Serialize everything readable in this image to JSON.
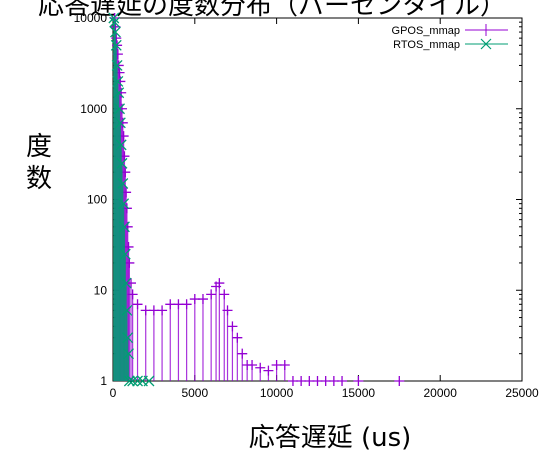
{
  "chart_data": {
    "type": "scatter",
    "title": "応答遅延の度数分布（パーセンタイル）",
    "xlabel": "応答遅延 (us)",
    "ylabel": "度数",
    "x_ticks": [
      "0",
      "5000",
      "10000",
      "15000",
      "20000",
      "25000"
    ],
    "y_ticks": [
      "1",
      "10",
      "100",
      "1000",
      "10000"
    ],
    "xlim": [
      0,
      25000
    ],
    "ylim": [
      1,
      10000
    ],
    "y_scale": "log",
    "legend_position": "top-right",
    "series": [
      {
        "name": "GPOS_mmap",
        "color": "#9400d3",
        "marker": "plus",
        "points": [
          [
            100,
            10000
          ],
          [
            150,
            8000
          ],
          [
            200,
            6000
          ],
          [
            250,
            5000
          ],
          [
            300,
            4000
          ],
          [
            350,
            3000
          ],
          [
            400,
            2500
          ],
          [
            450,
            2000
          ],
          [
            500,
            1500
          ],
          [
            550,
            1000
          ],
          [
            600,
            700
          ],
          [
            650,
            500
          ],
          [
            700,
            300
          ],
          [
            750,
            200
          ],
          [
            800,
            120
          ],
          [
            850,
            80
          ],
          [
            900,
            50
          ],
          [
            950,
            30
          ],
          [
            1000,
            20
          ],
          [
            1100,
            12
          ],
          [
            1200,
            9
          ],
          [
            1500,
            7
          ],
          [
            2000,
            6
          ],
          [
            2500,
            6
          ],
          [
            3000,
            6
          ],
          [
            3500,
            7
          ],
          [
            4000,
            7
          ],
          [
            4500,
            7
          ],
          [
            5000,
            8
          ],
          [
            5500,
            8
          ],
          [
            6000,
            9
          ],
          [
            6300,
            11
          ],
          [
            6500,
            12
          ],
          [
            6800,
            9
          ],
          [
            7000,
            6
          ],
          [
            7300,
            4
          ],
          [
            7600,
            3
          ],
          [
            7900,
            2
          ],
          [
            8200,
            1.5
          ],
          [
            8500,
            1.5
          ],
          [
            9000,
            1.4
          ],
          [
            9500,
            1.3
          ],
          [
            10000,
            1.5
          ],
          [
            10500,
            1.5
          ],
          [
            11000,
            1
          ],
          [
            11500,
            1
          ],
          [
            12000,
            1
          ],
          [
            12500,
            1
          ],
          [
            13000,
            1
          ],
          [
            13500,
            1
          ],
          [
            14000,
            1
          ],
          [
            15000,
            1
          ],
          [
            17500,
            1
          ]
        ]
      },
      {
        "name": "RTOS_mmap",
        "color": "#009e73",
        "marker": "cross",
        "points": [
          [
            50,
            10000
          ],
          [
            100,
            9000
          ],
          [
            150,
            7000
          ],
          [
            200,
            5000
          ],
          [
            250,
            3000
          ],
          [
            300,
            2000
          ],
          [
            350,
            1500
          ],
          [
            400,
            1000
          ],
          [
            450,
            700
          ],
          [
            500,
            400
          ],
          [
            550,
            250
          ],
          [
            600,
            150
          ],
          [
            650,
            90
          ],
          [
            700,
            50
          ],
          [
            750,
            25
          ],
          [
            800,
            12
          ],
          [
            850,
            6
          ],
          [
            900,
            3
          ],
          [
            950,
            2
          ],
          [
            1000,
            1
          ],
          [
            1200,
            1
          ],
          [
            1500,
            1
          ],
          [
            1800,
            1
          ],
          [
            2200,
            1
          ]
        ]
      }
    ]
  }
}
